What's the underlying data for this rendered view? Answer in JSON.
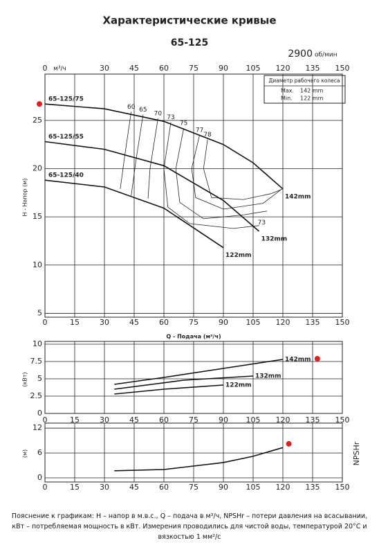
{
  "header": {
    "title": "Характеристические кривые",
    "subtitle": "65-125",
    "speed": "2900",
    "speed_unit": "об/мин",
    "box": {
      "title": "Диаметр рабочего колеса",
      "rows": [
        [
          "Max.",
          "142 mm"
        ],
        [
          "Min.",
          "122 mm"
        ]
      ]
    }
  },
  "footnote": "Пояснение к графикам: H – напор в м.в.с., Q – подача в м³/ч, NPSHr – потери давления на всасывании, кВт – потребляемая мощность в кВт. Измерения проводились для чистой воды, температурой 20°C и вязкостью 1 мм²/с",
  "chart_data": [
    {
      "type": "line",
      "top_unit": "м³/ч",
      "x_label": "Q - Подача (м³/ч)",
      "y_label": "H - Напор (м)",
      "xlim": [
        0,
        150
      ],
      "xticks": [
        0,
        15,
        30,
        45,
        60,
        75,
        90,
        105,
        120,
        135,
        150
      ],
      "ylim": [
        4.6,
        29.8
      ],
      "yticks": [
        5,
        10,
        15,
        20,
        25
      ],
      "grid": true,
      "series": [
        {
          "name": "65-125/75",
          "end_label": "142mm",
          "color": "#111111",
          "x": [
            0,
            30,
            60,
            90,
            105,
            120
          ],
          "values": [
            26.7,
            26.2,
            24.9,
            22.5,
            20.6,
            17.9
          ]
        },
        {
          "name": "65-125/55",
          "end_label": "132mm",
          "color": "#111111",
          "x": [
            0,
            30,
            60,
            90,
            108
          ],
          "values": [
            22.8,
            22.0,
            20.3,
            16.7,
            13.5
          ]
        },
        {
          "name": "65-125/40",
          "end_label": "122mm",
          "color": "#111111",
          "x": [
            0,
            30,
            60,
            90
          ],
          "values": [
            18.8,
            18.1,
            15.9,
            11.8
          ]
        }
      ],
      "isolines": [
        {
          "label": "60",
          "x": [
            43.5,
            40,
            38
          ],
          "values": [
            25.9,
            21,
            17.9
          ]
        },
        {
          "label": "65",
          "x": [
            49.5,
            46,
            43.5
          ],
          "values": [
            25.6,
            21,
            17.2
          ]
        },
        {
          "label": "70",
          "x": [
            57,
            53,
            52
          ],
          "values": [
            25.2,
            20,
            16.9
          ]
        },
        {
          "label": "73",
          "end_label": "73",
          "x": [
            63.5,
            60,
            62,
            73,
            95,
            108
          ],
          "values": [
            24.8,
            20,
            16,
            14.3,
            13.8,
            14.1
          ]
        },
        {
          "label": "75",
          "x": [
            70,
            66,
            68,
            80,
            100,
            112
          ],
          "values": [
            24.2,
            20,
            16.5,
            14.8,
            15.2,
            15.6
          ]
        },
        {
          "label": "77",
          "x": [
            78,
            74,
            76,
            90,
            110,
            119
          ],
          "values": [
            23.5,
            20,
            17,
            15.8,
            16.4,
            17.8
          ]
        },
        {
          "label": "78",
          "x": [
            82,
            80,
            84,
            100,
            114,
            120
          ],
          "values": [
            23,
            20,
            17,
            16.8,
            17.4,
            17.9
          ]
        }
      ],
      "markers": {
        "color": "#e02020",
        "x": [
          -2.8
        ],
        "values": [
          26.7
        ]
      }
    },
    {
      "type": "line",
      "y_label": "(кВт)",
      "xlim": [
        0,
        150
      ],
      "xticks": [
        0,
        15,
        30,
        45,
        60,
        75,
        90,
        105,
        120,
        135,
        150
      ],
      "ylim": [
        0,
        10.4
      ],
      "yticks": [
        0,
        2.5,
        5,
        7.5,
        10
      ],
      "grid": true,
      "series": [
        {
          "name": "142mm",
          "color": "#111111",
          "x": [
            35,
            60,
            90,
            120
          ],
          "values": [
            4.2,
            5.2,
            6.5,
            7.8
          ]
        },
        {
          "name": "132mm",
          "color": "#111111",
          "x": [
            35,
            70,
            105
          ],
          "values": [
            3.5,
            4.8,
            5.4
          ]
        },
        {
          "name": "122mm",
          "color": "#111111",
          "x": [
            35,
            60,
            90
          ],
          "values": [
            2.8,
            3.5,
            4.1
          ]
        }
      ],
      "markers": {
        "color": "#e02020",
        "x": [
          137.4
        ],
        "values": [
          7.9
        ]
      }
    },
    {
      "type": "line",
      "y_label": "(м)",
      "right_label": "NPSHr",
      "xlim": [
        0,
        150
      ],
      "xticks": [
        0,
        15,
        30,
        45,
        60,
        75,
        90,
        105,
        120,
        135,
        150
      ],
      "ylim": [
        -1,
        13.2
      ],
      "yticks": [
        0,
        6,
        12
      ],
      "grid": true,
      "series": [
        {
          "color": "#111111",
          "x": [
            35,
            60,
            90,
            105,
            120
          ],
          "values": [
            1.7,
            2.0,
            3.7,
            5.2,
            7.3
          ]
        }
      ],
      "markers": {
        "color": "#e02020",
        "x": [
          123
        ],
        "values": [
          8.2
        ]
      }
    }
  ]
}
